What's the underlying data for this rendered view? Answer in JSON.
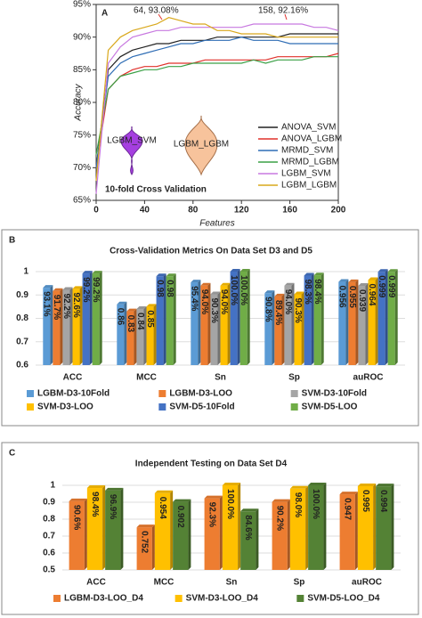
{
  "chart_data": [
    {
      "type": "line",
      "panel_label": "A",
      "xlabel": "Features",
      "ylabel": "Accuracy",
      "annotation_text": "10-fold Cross Validation",
      "inset_labels": [
        "LGBM_SVM",
        "LGBM_LGBM"
      ],
      "annotations": [
        "64, 93.08%",
        "158, 92.16%"
      ],
      "x": [
        0,
        10,
        20,
        30,
        40,
        50,
        60,
        70,
        80,
        90,
        100,
        110,
        120,
        130,
        140,
        150,
        160,
        170,
        180,
        190,
        200
      ],
      "xlim": [
        0,
        200
      ],
      "xticks": [
        0,
        40,
        80,
        120,
        160,
        200
      ],
      "ylim": [
        65,
        95
      ],
      "yticks": [
        {
          "value": 65,
          "label": "65%"
        },
        {
          "value": 70,
          "label": "70%"
        },
        {
          "value": 75,
          "label": "75%"
        },
        {
          "value": 80,
          "label": "80%"
        },
        {
          "value": 85,
          "label": "85%"
        },
        {
          "value": 90,
          "label": "90%"
        },
        {
          "value": 95,
          "label": "95%"
        }
      ],
      "series": [
        {
          "name": "ANOVA_SVM",
          "color": "#222222",
          "values": [
            70,
            85,
            87,
            88,
            88.5,
            89,
            89,
            89.5,
            89.5,
            89.5,
            90,
            90,
            90,
            90,
            90,
            90,
            90.5,
            90.5,
            90.5,
            90.5,
            90.5
          ]
        },
        {
          "name": "ANOVA_LGBM",
          "color": "#e0302a",
          "values": [
            70,
            82,
            84,
            85,
            85.5,
            85.5,
            86,
            86,
            86,
            86.5,
            86.5,
            86.5,
            86.5,
            86.5,
            86.5,
            87,
            87,
            87,
            87,
            87,
            87.5
          ]
        },
        {
          "name": "MRMD_SVM",
          "color": "#2f6db5",
          "values": [
            70,
            84,
            86,
            87,
            87.5,
            88,
            88.5,
            89,
            89,
            89.5,
            89.5,
            89.5,
            90,
            89.5,
            89.5,
            89.5,
            89,
            89,
            89,
            89,
            89
          ]
        },
        {
          "name": "MRMD_LGBM",
          "color": "#3aa046",
          "values": [
            72,
            82,
            84,
            84.5,
            85,
            85,
            85.5,
            85.5,
            86,
            86,
            86,
            86,
            86,
            86.5,
            86,
            86.5,
            86.5,
            86.5,
            87,
            87,
            87
          ]
        },
        {
          "name": "LGBM_SVM",
          "color": "#c879e0",
          "values": [
            66,
            86,
            88.5,
            90,
            90.5,
            91,
            91,
            91.5,
            91.5,
            91.5,
            91.5,
            91.5,
            91.5,
            92,
            92,
            92,
            92,
            92,
            91.5,
            91.5,
            91
          ]
        },
        {
          "name": "LGBM_LGBM",
          "color": "#d9a81c",
          "values": [
            68,
            88,
            90,
            91,
            91.5,
            92,
            93,
            92.5,
            92,
            92,
            91,
            91,
            90.5,
            90.5,
            90.5,
            90,
            90,
            90,
            90,
            90,
            90
          ]
        }
      ]
    },
    {
      "type": "bar",
      "panel_label": "B",
      "title": "Cross-Validation Metrics On Data Set D3 and D5",
      "categories": [
        "ACC",
        "MCC",
        "Sn",
        "Sp",
        "auROC"
      ],
      "ylim": [
        0.6,
        1
      ],
      "yticks": [
        0.6,
        0.7,
        0.8,
        0.9,
        1
      ],
      "series": [
        {
          "name": "LGBM-D3-10Fold",
          "color": "#5b9bd5",
          "values": [
            0.931,
            0.86,
            0.954,
            0.908,
            0.956
          ],
          "value_labels": [
            "93.1%",
            "0.86",
            "95.4%",
            "90.8%",
            "0.956"
          ]
        },
        {
          "name": "LGBM-D3-LOO",
          "color": "#ed7d31",
          "values": [
            0.917,
            0.83,
            0.94,
            0.894,
            0.955
          ],
          "value_labels": [
            "91.7%",
            "0.83",
            "94.0%",
            "89.4%",
            "0.955"
          ]
        },
        {
          "name": "SVM-D3-10Fold",
          "color": "#a5a5a5",
          "values": [
            0.922,
            0.84,
            0.903,
            0.94,
            0.939
          ],
          "value_labels": [
            "92.2%",
            "0.84",
            "90.3%",
            "94.0%",
            "0.939"
          ]
        },
        {
          "name": "SVM-D3-LOO",
          "color": "#ffc000",
          "values": [
            0.926,
            0.85,
            0.94,
            0.903,
            0.964
          ],
          "value_labels": [
            "92.6%",
            "0.85",
            "94.0%",
            "90.3%",
            "0.964"
          ]
        },
        {
          "name": "SVM-D5-10Fold",
          "color": "#4472c4",
          "values": [
            0.992,
            0.98,
            1.0,
            0.983,
            0.999
          ],
          "value_labels": [
            "99.2%",
            "0.98",
            "100.0%",
            "98.3%",
            "0.999"
          ]
        },
        {
          "name": "SVM-D5-LOO",
          "color": "#70ad47",
          "values": [
            0.992,
            0.98,
            1.0,
            0.984,
            0.999
          ],
          "value_labels": [
            "99.2%",
            "0.98",
            "100.0%",
            "98.4%",
            "0.999"
          ]
        }
      ]
    },
    {
      "type": "bar",
      "panel_label": "C",
      "title": "Independent Testing on Data Set D4",
      "categories": [
        "ACC",
        "MCC",
        "Sn",
        "Sp",
        "auROC"
      ],
      "ylim": [
        0.5,
        1
      ],
      "yticks": [
        0.5,
        0.6,
        0.7,
        0.8,
        0.9,
        1
      ],
      "series": [
        {
          "name": "LGBM-D3-LOO_D4",
          "color": "#ed7d31",
          "values": [
            0.906,
            0.752,
            0.923,
            0.902,
            0.947
          ],
          "value_labels": [
            "90.6%",
            "0.752",
            "92.3%",
            "90.2%",
            "0.947"
          ]
        },
        {
          "name": "SVM-D3-LOO_D4",
          "color": "#ffc000",
          "values": [
            0.984,
            0.954,
            1.0,
            0.98,
            0.995
          ],
          "value_labels": [
            "98.4%",
            "0.954",
            "100.0%",
            "98.0%",
            "0.995"
          ]
        },
        {
          "name": "SVM-D5-LOO_D4",
          "color": "#548235",
          "values": [
            0.969,
            0.902,
            0.846,
            1.0,
            0.994
          ],
          "value_labels": [
            "96.9%",
            "0.902",
            "84.6%",
            "100.0%",
            "0.994"
          ]
        }
      ]
    }
  ]
}
